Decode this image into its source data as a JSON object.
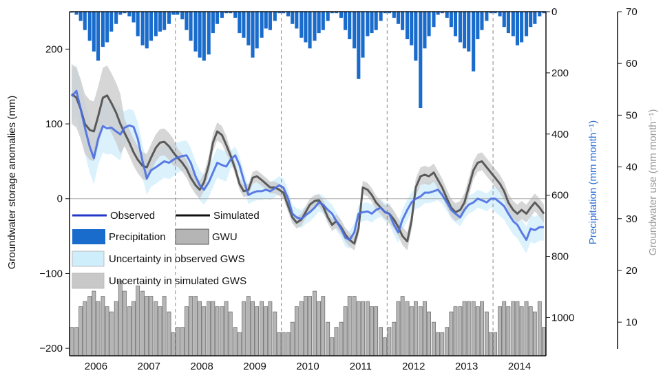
{
  "chart_data": {
    "type": "combo",
    "x": [
      2006.04,
      2006.13,
      2006.21,
      2006.29,
      2006.38,
      2006.46,
      2006.54,
      2006.63,
      2006.71,
      2006.79,
      2006.88,
      2006.96,
      2007.04,
      2007.13,
      2007.21,
      2007.29,
      2007.38,
      2007.46,
      2007.54,
      2007.63,
      2007.71,
      2007.79,
      2007.88,
      2007.96,
      2008.04,
      2008.13,
      2008.21,
      2008.29,
      2008.38,
      2008.46,
      2008.54,
      2008.63,
      2008.71,
      2008.79,
      2008.88,
      2008.96,
      2009.04,
      2009.13,
      2009.21,
      2009.29,
      2009.38,
      2009.46,
      2009.54,
      2009.63,
      2009.71,
      2009.79,
      2009.88,
      2009.96,
      2010.04,
      2010.13,
      2010.21,
      2010.29,
      2010.38,
      2010.46,
      2010.54,
      2010.63,
      2010.71,
      2010.79,
      2010.88,
      2010.96,
      2011.04,
      2011.13,
      2011.21,
      2011.29,
      2011.38,
      2011.46,
      2011.54,
      2011.63,
      2011.71,
      2011.79,
      2011.88,
      2011.96,
      2012.04,
      2012.13,
      2012.21,
      2012.29,
      2012.38,
      2012.46,
      2012.54,
      2012.63,
      2012.71,
      2012.79,
      2012.88,
      2012.96,
      2013.04,
      2013.13,
      2013.21,
      2013.29,
      2013.38,
      2013.46,
      2013.54,
      2013.63,
      2013.71,
      2013.79,
      2013.88,
      2013.96,
      2014.04,
      2014.13,
      2014.21,
      2014.29,
      2014.38,
      2014.46,
      2014.54,
      2014.63,
      2014.71,
      2014.79,
      2014.88,
      2014.96
    ],
    "xlim": [
      2006,
      2015
    ],
    "xticks": [
      {
        "value": 2006.5,
        "label": "2006"
      },
      {
        "value": 2007.5,
        "label": "2007"
      },
      {
        "value": 2008.5,
        "label": "2008"
      },
      {
        "value": 2009.5,
        "label": "2009"
      },
      {
        "value": 2010.5,
        "label": "2010"
      },
      {
        "value": 2011.5,
        "label": "2011"
      },
      {
        "value": 2012.5,
        "label": "2012"
      },
      {
        "value": 2013.5,
        "label": "2013"
      },
      {
        "value": 2014.5,
        "label": "2014"
      }
    ],
    "ylim": [
      -210,
      250
    ],
    "yticks": [
      {
        "value": -200,
        "label": "−200"
      },
      {
        "value": -100,
        "label": "−100"
      },
      0,
      100,
      200
    ],
    "y_label": "Groundwater storage anomalies (mm)",
    "y2lim": [
      0,
      1125
    ],
    "y2_reversed": true,
    "y2ticks": [
      0,
      200,
      400,
      600,
      800,
      1000
    ],
    "y2_label": "Precipitation (mm month⁻¹)",
    "y2_label_color": "#2f6fd6",
    "y3lim": [
      3.5,
      70
    ],
    "y3ticks": [
      10,
      20,
      30,
      40,
      50,
      60,
      70
    ],
    "y3_label": "Groundwater use (mm month⁻¹)",
    "y3_label_color": "#9a9a9a",
    "ref_line": 0,
    "dashed_vlines": [
      2008,
      2010,
      2012,
      2014
    ],
    "series": [
      {
        "name": "Observed",
        "kind": "line",
        "axis": "y",
        "color": "#4a6ee0",
        "values": [
          137,
          144,
          120,
          95,
          70,
          54,
          80,
          97,
          94,
          95,
          90,
          86,
          95,
          98,
          96,
          80,
          50,
          27,
          38,
          42,
          46,
          50,
          48,
          52,
          55,
          57,
          58,
          48,
          30,
          18,
          12,
          22,
          35,
          48,
          45,
          43,
          52,
          58,
          45,
          25,
          5,
          8,
          10,
          10,
          12,
          10,
          14,
          18,
          15,
          0,
          -20,
          -25,
          -27,
          -22,
          -18,
          -12,
          -5,
          -8,
          -15,
          -20,
          -30,
          -40,
          -52,
          -55,
          -45,
          -20,
          -18,
          -17,
          -20,
          -15,
          -12,
          -18,
          -20,
          -35,
          -45,
          -28,
          -15,
          -5,
          0,
          3,
          8,
          8,
          10,
          12,
          5,
          -5,
          -15,
          -20,
          -25,
          -15,
          -8,
          -5,
          0,
          -2,
          -5,
          0,
          0,
          -5,
          -10,
          -20,
          -30,
          -35,
          -45,
          -55,
          -40,
          -42,
          -38,
          -38
        ]
      },
      {
        "name": "Simulated",
        "kind": "line",
        "axis": "y",
        "color": "#4d4d4d",
        "values": [
          140,
          135,
          120,
          100,
          92,
          90,
          110,
          135,
          138,
          128,
          115,
          100,
          88,
          75,
          62,
          52,
          44,
          42,
          55,
          68,
          75,
          76,
          70,
          62,
          55,
          48,
          40,
          28,
          18,
          12,
          22,
          45,
          75,
          90,
          85,
          72,
          58,
          40,
          20,
          10,
          12,
          28,
          30,
          25,
          20,
          15,
          15,
          12,
          8,
          -10,
          -25,
          -32,
          -28,
          -18,
          -8,
          -3,
          -2,
          -10,
          -25,
          -35,
          -30,
          -38,
          -48,
          -55,
          -60,
          -40,
          15,
          12,
          5,
          -5,
          -12,
          -18,
          -20,
          -28,
          -38,
          -50,
          -57,
          -30,
          15,
          30,
          32,
          30,
          35,
          25,
          15,
          0,
          -12,
          -18,
          -15,
          -5,
          15,
          38,
          48,
          50,
          42,
          35,
          28,
          20,
          10,
          -5,
          -15,
          -20,
          -15,
          -20,
          -12,
          -5,
          -12,
          -20
        ]
      },
      {
        "name": "Precipitation",
        "kind": "bar",
        "axis": "y2",
        "color": "#1a6ccc",
        "values": [
          3,
          10,
          30,
          60,
          95,
          130,
          160,
          115,
          100,
          65,
          40,
          10,
          5,
          15,
          35,
          80,
          110,
          120,
          95,
          80,
          65,
          60,
          40,
          10,
          10,
          25,
          60,
          95,
          130,
          150,
          160,
          140,
          70,
          40,
          20,
          5,
          5,
          20,
          70,
          85,
          110,
          150,
          120,
          85,
          55,
          60,
          30,
          5,
          5,
          15,
          40,
          55,
          85,
          100,
          120,
          95,
          70,
          60,
          30,
          5,
          5,
          20,
          60,
          90,
          120,
          220,
          150,
          80,
          70,
          60,
          30,
          5,
          5,
          20,
          40,
          60,
          90,
          110,
          160,
          315,
          120,
          80,
          50,
          10,
          5,
          20,
          50,
          80,
          100,
          120,
          130,
          195,
          90,
          60,
          30,
          5,
          5,
          15,
          50,
          70,
          80,
          110,
          100,
          80,
          50,
          40,
          15,
          5
        ]
      },
      {
        "name": "GWU",
        "kind": "bar",
        "axis": "y3",
        "color": "#b5b5b5",
        "values": [
          9,
          9,
          13,
          14,
          15,
          16,
          14,
          15,
          13,
          12,
          14,
          18,
          16,
          13,
          14,
          17,
          16,
          15,
          15,
          14,
          13,
          15,
          12,
          8,
          9,
          9,
          13,
          15,
          15,
          14,
          13,
          14,
          14,
          13,
          13,
          14,
          12,
          9,
          8,
          14,
          15,
          14,
          13,
          14,
          13,
          14,
          12,
          8,
          8,
          8,
          10,
          13,
          14,
          15,
          15,
          16,
          14,
          15,
          10,
          7,
          9,
          10,
          13,
          15,
          15,
          14,
          14,
          14,
          13,
          13,
          9,
          7,
          9,
          10,
          14,
          15,
          14,
          13,
          14,
          13,
          14,
          12,
          10,
          8,
          8,
          9,
          12,
          13,
          13,
          14,
          14,
          14,
          13,
          14,
          12,
          8,
          8,
          13,
          14,
          13,
          14,
          14,
          13,
          14,
          13,
          12,
          14,
          9
        ]
      },
      {
        "name": "Uncertainty in observed GWS",
        "kind": "band",
        "axis": "y",
        "color": "#cfeefc",
        "upper": [
          172,
          179,
          155,
          130,
          105,
          89,
          115,
          132,
          129,
          130,
          125,
          121,
          117,
          120,
          118,
          102,
          72,
          49,
          60,
          64,
          68,
          72,
          70,
          74,
          75,
          77,
          78,
          68,
          50,
          38,
          32,
          42,
          55,
          68,
          65,
          63,
          64,
          70,
          57,
          37,
          17,
          20,
          22,
          22,
          24,
          22,
          26,
          30,
          27,
          12,
          -8,
          -13,
          -15,
          -10,
          -6,
          0,
          7,
          4,
          -3,
          -8,
          -18,
          -28,
          -40,
          -43,
          -33,
          -8,
          -6,
          -5,
          -8,
          -3,
          0,
          -6,
          -6,
          -21,
          -31,
          -14,
          -1,
          9,
          14,
          17,
          22,
          22,
          24,
          26,
          17,
          7,
          -3,
          -8,
          -13,
          -3,
          4,
          7,
          12,
          10,
          7,
          12,
          18,
          13,
          8,
          -2,
          -12,
          -17,
          -27,
          -37,
          -22,
          -24,
          -20,
          -20
        ],
        "lower": [
          102,
          109,
          85,
          60,
          35,
          19,
          45,
          62,
          59,
          60,
          55,
          51,
          73,
          76,
          74,
          58,
          28,
          5,
          16,
          20,
          24,
          28,
          26,
          30,
          35,
          37,
          38,
          28,
          10,
          -2,
          -8,
          2,
          15,
          28,
          25,
          23,
          40,
          46,
          33,
          13,
          -7,
          -4,
          -2,
          -2,
          0,
          -2,
          2,
          6,
          3,
          -12,
          -32,
          -37,
          -39,
          -34,
          -30,
          -24,
          -17,
          -20,
          -27,
          -32,
          -42,
          -52,
          -64,
          -67,
          -57,
          -32,
          -30,
          -29,
          -32,
          -27,
          -24,
          -30,
          -34,
          -49,
          -59,
          -42,
          -29,
          -19,
          -14,
          -11,
          -6,
          -6,
          -4,
          -2,
          -7,
          -17,
          -27,
          -32,
          -37,
          -27,
          -20,
          -17,
          -12,
          -14,
          -17,
          -12,
          -18,
          -23,
          -28,
          -38,
          -48,
          -53,
          -63,
          -73,
          -58,
          -60,
          -56,
          -56
        ]
      },
      {
        "name": "Uncertainty in simulated GWS",
        "kind": "band",
        "axis": "y",
        "color": "#c8c8c8",
        "upper": [
          180,
          175,
          160,
          140,
          132,
          130,
          150,
          175,
          178,
          168,
          155,
          140,
          106,
          93,
          80,
          70,
          62,
          60,
          73,
          86,
          93,
          94,
          88,
          80,
          67,
          60,
          52,
          40,
          30,
          24,
          34,
          57,
          87,
          102,
          97,
          84,
          66,
          48,
          28,
          18,
          20,
          36,
          38,
          33,
          28,
          23,
          23,
          20,
          16,
          -2,
          -17,
          -24,
          -20,
          -10,
          0,
          5,
          6,
          -2,
          -17,
          -27,
          -21,
          -29,
          -39,
          -46,
          -51,
          -31,
          24,
          21,
          14,
          4,
          -3,
          -9,
          -8,
          -16,
          -26,
          -38,
          -45,
          -18,
          27,
          42,
          44,
          42,
          47,
          37,
          27,
          12,
          0,
          -6,
          -3,
          7,
          27,
          50,
          60,
          62,
          54,
          47,
          40,
          32,
          22,
          7,
          -3,
          -8,
          -3,
          -8,
          0,
          7,
          0,
          -8
        ],
        "lower": [
          100,
          95,
          80,
          60,
          52,
          50,
          70,
          95,
          98,
          88,
          75,
          60,
          70,
          57,
          44,
          34,
          26,
          24,
          37,
          50,
          57,
          58,
          52,
          44,
          43,
          36,
          28,
          16,
          6,
          0,
          10,
          33,
          63,
          78,
          73,
          60,
          50,
          32,
          12,
          2,
          4,
          20,
          22,
          17,
          12,
          7,
          7,
          4,
          0,
          -18,
          -33,
          -40,
          -36,
          -26,
          -16,
          -11,
          -10,
          -18,
          -33,
          -43,
          -39,
          -47,
          -57,
          -64,
          -69,
          -49,
          6,
          3,
          -4,
          -14,
          -21,
          -27,
          -32,
          -40,
          -50,
          -62,
          -69,
          -42,
          3,
          18,
          20,
          18,
          23,
          13,
          3,
          -12,
          -24,
          -30,
          -27,
          -17,
          3,
          26,
          36,
          38,
          30,
          23,
          16,
          8,
          -2,
          -17,
          -27,
          -32,
          -27,
          -32,
          -24,
          -17,
          -24,
          -32
        ]
      }
    ]
  }
}
